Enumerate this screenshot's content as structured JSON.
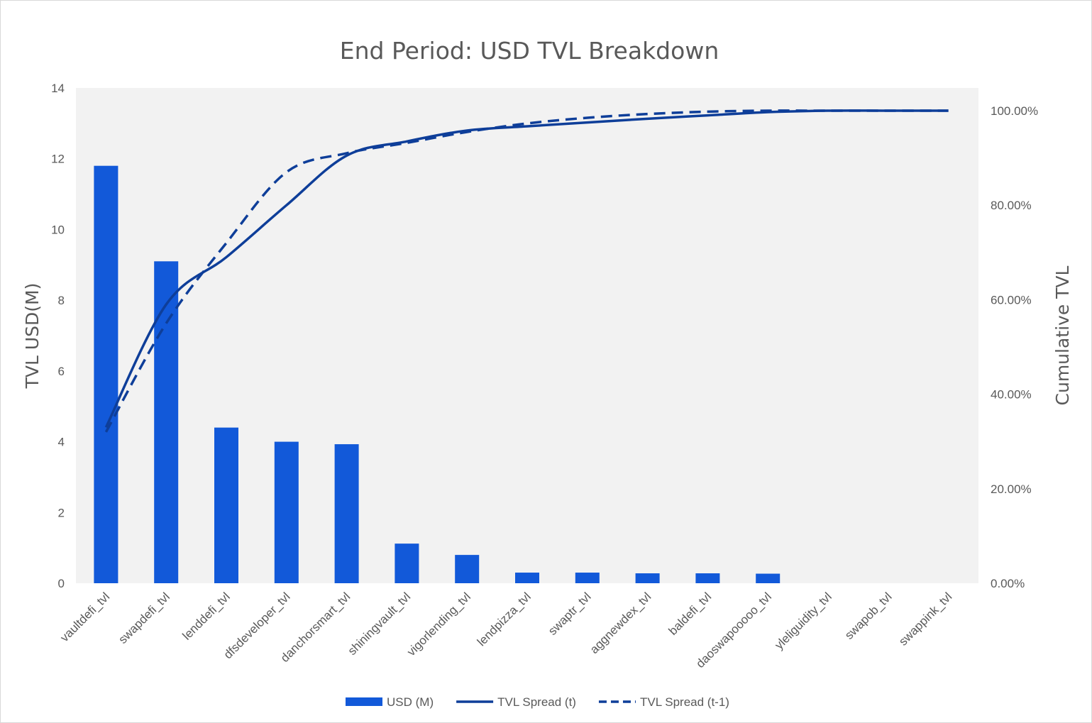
{
  "chart_data": {
    "type": "bar",
    "title": "End Period: USD  TVL Breakdown",
    "ylabel": "TVL USD(M)",
    "y2label": "Cumulative TVL",
    "ylim": [
      0,
      14
    ],
    "y_ticks": [
      "0",
      "2",
      "4",
      "6",
      "8",
      "10",
      "12",
      "14"
    ],
    "y2lim": [
      0,
      1.05
    ],
    "y2_ticks": [
      "0.00%",
      "20.00%",
      "40.00%",
      "60.00%",
      "80.00%",
      "100.00%"
    ],
    "grid": false,
    "legend_position": "bottom",
    "categories": [
      "vaultdefi_tvl",
      "swapdefi_tvl",
      "lenddefi_tvl",
      "dfsdeveloper_tvl",
      "danchorsmart_tvl",
      "shiningvault_tvl",
      "vigorlending_tvl",
      "lendpizza_tvl",
      "swaptr_tvl",
      "aggnewdex_tvl",
      "baldefi_tvl",
      "daoswapooooo_tvl",
      "yleliguidity_tvl",
      "swapob_tvl",
      "swappink_tvl"
    ],
    "series": [
      {
        "name": "USD (M)",
        "kind": "bar",
        "axis": "left",
        "color": "#1259d9",
        "values": [
          11.8,
          9.1,
          4.4,
          4.0,
          3.93,
          1.12,
          0.8,
          0.3,
          0.3,
          0.28,
          0.28,
          0.27,
          0.0,
          0.0,
          0.0
        ]
      },
      {
        "name": "TVL Spread (t)",
        "kind": "line",
        "style": "solid",
        "axis": "right",
        "color": "#0e3e99",
        "values": [
          0.33,
          0.59,
          0.69,
          0.8,
          0.905,
          0.935,
          0.958,
          0.967,
          0.975,
          0.983,
          0.99,
          0.997,
          1.0,
          1.0,
          1.0
        ]
      },
      {
        "name": "TVL Spread (t-1)",
        "kind": "line",
        "style": "dashed",
        "axis": "right",
        "color": "#0e3e99",
        "values": [
          0.32,
          0.55,
          0.72,
          0.87,
          0.91,
          0.932,
          0.955,
          0.973,
          0.985,
          0.993,
          0.998,
          1.0,
          1.0,
          1.0,
          1.0
        ]
      }
    ]
  }
}
